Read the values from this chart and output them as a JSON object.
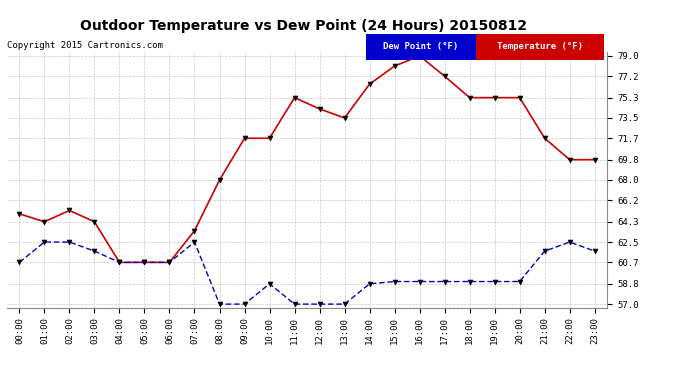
{
  "title": "Outdoor Temperature vs Dew Point (24 Hours) 20150812",
  "copyright": "Copyright 2015 Cartronics.com",
  "hours": [
    "00:00",
    "01:00",
    "02:00",
    "03:00",
    "04:00",
    "05:00",
    "06:00",
    "07:00",
    "08:00",
    "09:00",
    "10:00",
    "11:00",
    "12:00",
    "13:00",
    "14:00",
    "15:00",
    "16:00",
    "17:00",
    "18:00",
    "19:00",
    "20:00",
    "21:00",
    "22:00",
    "23:00"
  ],
  "temperature": [
    65.0,
    64.3,
    65.3,
    64.3,
    60.7,
    60.7,
    60.7,
    63.5,
    68.0,
    71.7,
    71.7,
    75.3,
    74.3,
    73.5,
    76.5,
    78.1,
    79.0,
    77.2,
    75.3,
    75.3,
    75.3,
    71.7,
    69.8,
    69.8
  ],
  "dew_point": [
    60.7,
    62.5,
    62.5,
    61.7,
    60.7,
    60.7,
    60.7,
    62.5,
    57.0,
    57.0,
    58.8,
    57.0,
    57.0,
    57.0,
    58.8,
    59.0,
    59.0,
    59.0,
    59.0,
    59.0,
    59.0,
    61.7,
    62.5,
    61.7
  ],
  "temp_color": "#cc0000",
  "dew_color": "#0000cc",
  "bg_color": "#ffffff",
  "plot_bg_color": "#ffffff",
  "grid_color": "#bbbbbb",
  "ylim_min": 57.0,
  "ylim_max": 79.0,
  "yticks": [
    57.0,
    58.8,
    60.7,
    62.5,
    64.3,
    66.2,
    68.0,
    69.8,
    71.7,
    73.5,
    75.3,
    77.2,
    79.0
  ],
  "legend_dew_bg": "#0000cc",
  "legend_temp_bg": "#cc0000",
  "legend_dew_text": "Dew Point (°F)",
  "legend_temp_text": "Temperature (°F)"
}
